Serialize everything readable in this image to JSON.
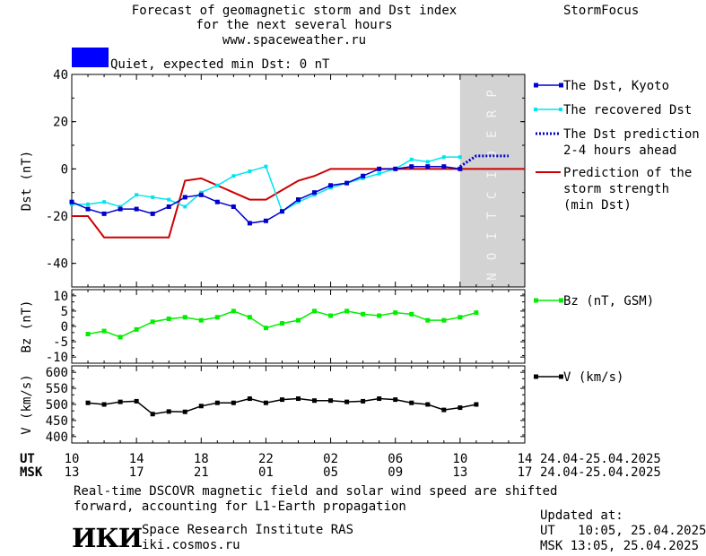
{
  "header": {
    "title_lines": [
      "Forecast of geomagnetic storm and Dst index",
      "for the next several hours",
      "www.spaceweather.ru"
    ],
    "brand": "StormFocus",
    "status_text": "Quiet, expected min Dst: 0 nT",
    "status_color": "#0000ff"
  },
  "footer": {
    "note_lines": [
      "Real-time DSCOVR magnetic field and solar wind speed are shifted",
      "forward, accounting for L1-Earth propagation"
    ],
    "institute": "Space Research Institute RAS",
    "site": "iki.cosmos.ru",
    "logo_text": "ИКИ",
    "updated_label": "Updated at:",
    "updated_ut": "UT   10:05, 25.04.2025",
    "updated_msk": "MSK 13:05, 25.04.2025"
  },
  "colors": {
    "dst_kyoto": "#0000cc",
    "recovered": "#00e5ee",
    "prediction_dotted": "#0000cc",
    "strength": "#cc0000",
    "bz": "#00ee00",
    "v": "#000000",
    "prediction_band": "#d3d3d3"
  },
  "chart_data": [
    {
      "type": "line",
      "ylabel": "Dst (nT)",
      "ylim": [
        -50,
        40
      ],
      "yticks": [
        40,
        20,
        0,
        -20,
        -40
      ],
      "x_unit": "hours since 10 UT 24.04.2025",
      "xlim": [
        0,
        28
      ],
      "prediction_band_label": "PREDICTION",
      "prediction_band_x": [
        24,
        28
      ],
      "series": [
        {
          "name": "The Dst, Kyoto",
          "x": [
            0,
            1,
            2,
            3,
            4,
            5,
            6,
            7,
            8,
            9,
            10,
            11,
            12,
            13,
            14,
            15,
            16,
            17,
            18,
            19,
            20,
            21,
            22,
            23,
            24
          ],
          "values": [
            -14,
            -17,
            -19,
            -17,
            -17,
            -19,
            -16,
            -12,
            -11,
            -14,
            -16,
            -23,
            -22,
            -18,
            -13,
            -10,
            -7,
            -6,
            -3,
            0,
            0,
            1,
            1,
            1,
            0
          ]
        },
        {
          "name": "The recovered Dst",
          "x": [
            0,
            1,
            2,
            3,
            4,
            5,
            6,
            7,
            8,
            9,
            10,
            11,
            12,
            13,
            14,
            15,
            16,
            17,
            18,
            19,
            20,
            21,
            22,
            23,
            24
          ],
          "values": [
            -15,
            -15,
            -14,
            -16,
            -11,
            -12,
            -13,
            -16,
            -10,
            -7,
            -3,
            -1,
            1,
            -18,
            -14,
            -11,
            -8,
            -6,
            -4,
            -2,
            0,
            4,
            3,
            5,
            5
          ]
        },
        {
          "name": "The Dst prediction 2-4 hours ahead",
          "x": [
            24,
            25,
            26,
            27
          ],
          "values": [
            1,
            5.5,
            5.5,
            5.5
          ]
        },
        {
          "name": "Prediction of the storm strength (min Dst)",
          "x": [
            0,
            1,
            2,
            3,
            4,
            5,
            6,
            7,
            8,
            9,
            10,
            11,
            12,
            13,
            14,
            15,
            16,
            17,
            18,
            19,
            20,
            21,
            22,
            23,
            24,
            25,
            26,
            27,
            28
          ],
          "values": [
            -20,
            -20,
            -29,
            -29,
            -29,
            -29,
            -29,
            -5,
            -4,
            -7,
            -10,
            -13,
            -13,
            -9,
            -5,
            -3,
            0,
            0,
            0,
            0,
            0,
            0,
            0,
            0,
            0,
            0,
            0,
            0,
            0
          ]
        }
      ],
      "legend": [
        {
          "label_lines": [
            "The Dst, Kyoto"
          ],
          "style": "dst"
        },
        {
          "label_lines": [
            "The recovered Dst"
          ],
          "style": "rec"
        },
        {
          "label_lines": [
            "The Dst prediction",
            "2-4 hours ahead"
          ],
          "style": "pred"
        },
        {
          "label_lines": [
            "Prediction of the",
            "storm strength",
            "(min Dst)"
          ],
          "style": "strength"
        }
      ]
    },
    {
      "type": "line",
      "ylabel": "Bz (nT)",
      "ylim": [
        -12,
        12
      ],
      "yticks": [
        10,
        5,
        0,
        -5,
        -10
      ],
      "series": [
        {
          "name": "Bz (nT, GSM)",
          "x": [
            1,
            2,
            3,
            4,
            5,
            6,
            7,
            8,
            9,
            10,
            11,
            12,
            13,
            14,
            15,
            16,
            17,
            18,
            19,
            20,
            21,
            22,
            23,
            24,
            25
          ],
          "values": [
            -2.5,
            -1.5,
            -3.5,
            -1,
            1.5,
            2.5,
            3,
            2,
            3,
            5,
            3,
            -0.5,
            1,
            2,
            5,
            3.5,
            5,
            4,
            3.5,
            4.5,
            4,
            2,
            2,
            3,
            4.5
          ]
        }
      ],
      "legend": [
        {
          "label_lines": [
            "Bz (nT, GSM)"
          ],
          "style": "bz"
        }
      ]
    },
    {
      "type": "line",
      "ylabel": "V (km/s)",
      "ylim": [
        380,
        620
      ],
      "yticks": [
        600,
        550,
        500,
        450,
        400
      ],
      "series": [
        {
          "name": "V (km/s)",
          "x": [
            1,
            2,
            3,
            4,
            5,
            6,
            7,
            8,
            9,
            10,
            11,
            12,
            13,
            14,
            15,
            16,
            17,
            18,
            19,
            20,
            21,
            22,
            23,
            24,
            25
          ],
          "values": [
            505,
            500,
            508,
            510,
            470,
            478,
            477,
            495,
            505,
            505,
            518,
            505,
            515,
            518,
            512,
            512,
            508,
            510,
            518,
            515,
            505,
            500,
            483,
            490,
            500
          ]
        }
      ],
      "legend": [
        {
          "label_lines": [
            "V (km/s)"
          ],
          "style": "v"
        }
      ]
    }
  ],
  "time_axis": {
    "ut_label": "UT",
    "msk_label": "MSK",
    "ut_ticks": [
      "10",
      "14",
      "18",
      "22",
      "02",
      "06",
      "10",
      "14"
    ],
    "msk_ticks": [
      "13",
      "17",
      "21",
      "01",
      "05",
      "09",
      "13",
      "17"
    ],
    "tick_hours": [
      0,
      4,
      8,
      12,
      16,
      20,
      24,
      28
    ],
    "date_range": "24.04-25.04.2025"
  }
}
